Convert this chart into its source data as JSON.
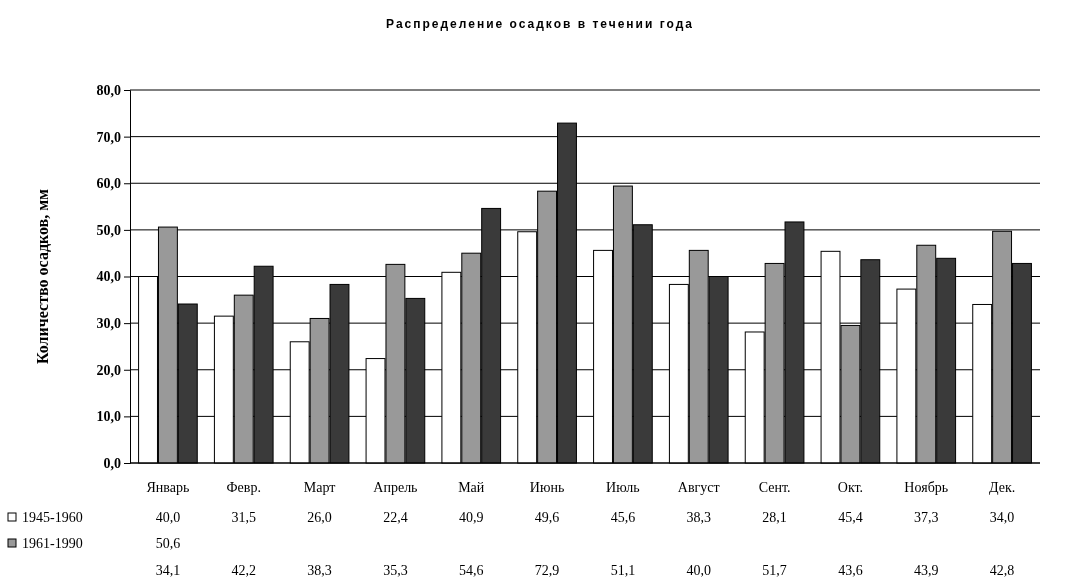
{
  "chart_data": {
    "type": "bar",
    "title": "Распределение осадков в течении года",
    "ylabel": "Количество осадков, мм",
    "categories": [
      "Январь",
      "Февр.",
      "Март",
      "Апрель",
      "Май",
      "Июнь",
      "Июль",
      "Август",
      "Сент.",
      "Окт.",
      "Ноябрь",
      "Дек."
    ],
    "series": [
      {
        "name": "1945-1960",
        "color": "#ffffff",
        "values": [
          40.0,
          31.5,
          26.0,
          22.4,
          40.9,
          49.6,
          45.6,
          38.3,
          28.1,
          45.4,
          37.3,
          34.0
        ],
        "value_labels": [
          "40,0",
          "31,5",
          "26,0",
          "22,4",
          "40,9",
          "49,6",
          "45,6",
          "38,3",
          "28,1",
          "45,4",
          "37,3",
          "34,0"
        ]
      },
      {
        "name": "1961-1990",
        "color": "#999999",
        "values": [
          50.6,
          36,
          31,
          42.6,
          45,
          58.3,
          59.4,
          45.6,
          42.8,
          29.5,
          46.7,
          49.7
        ]
      },
      {
        "color": "#3a3a3a",
        "values": [
          34.1,
          42.2,
          38.3,
          35.3,
          54.6,
          72.9,
          51.1,
          40.0,
          51.7,
          43.6,
          43.9,
          42.8
        ],
        "value_labels": [
          "34,1",
          "42,2",
          "38,3",
          "35,3",
          "54,6",
          "72,9",
          "51,1",
          "40,0",
          "51,7",
          "43,6",
          "43,9",
          "42,8"
        ]
      }
    ],
    "ylim": [
      0,
      80
    ],
    "yticks": [
      {
        "value": 0,
        "label": "0,0"
      },
      {
        "value": 10,
        "label": "10,0"
      },
      {
        "value": 20,
        "label": "20,0"
      },
      {
        "value": 30,
        "label": "30,0"
      },
      {
        "value": 40,
        "label": "40,0"
      },
      {
        "value": 50,
        "label": "50,0"
      },
      {
        "value": 60,
        "label": "60,0"
      },
      {
        "value": 70,
        "label": "70,0"
      },
      {
        "value": 80,
        "label": "80,0"
      }
    ],
    "grid": "y",
    "legend": "bottom left",
    "annotations": [
      "50,6"
    ]
  }
}
